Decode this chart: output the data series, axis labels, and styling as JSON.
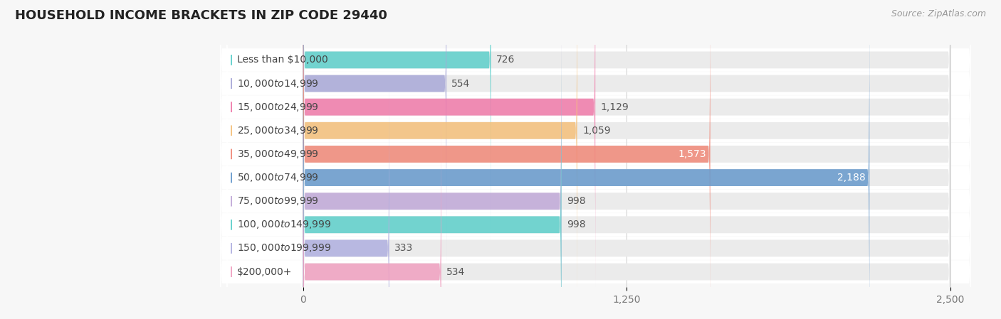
{
  "title": "HOUSEHOLD INCOME BRACKETS IN ZIP CODE 29440",
  "source": "Source: ZipAtlas.com",
  "categories": [
    "Less than $10,000",
    "$10,000 to $14,999",
    "$15,000 to $24,999",
    "$25,000 to $34,999",
    "$35,000 to $49,999",
    "$50,000 to $74,999",
    "$75,000 to $99,999",
    "$100,000 to $149,999",
    "$150,000 to $199,999",
    "$200,000+"
  ],
  "values": [
    726,
    554,
    1129,
    1059,
    1573,
    2188,
    998,
    998,
    333,
    534
  ],
  "bar_colors": [
    "#5dcfcb",
    "#a8a8d8",
    "#f07aaa",
    "#f5c07a",
    "#f08878",
    "#6699cc",
    "#c0a8d8",
    "#5dcfcb",
    "#b0b0e0",
    "#f0a0c0"
  ],
  "background_color": "#f7f7f7",
  "row_bg_color": "#ffffff",
  "bar_bg_color": "#ebebeb",
  "xlim": [
    0,
    2500
  ],
  "xticks": [
    0,
    1250,
    2500
  ],
  "title_fontsize": 13,
  "label_fontsize": 10,
  "value_fontsize": 10,
  "source_fontsize": 9,
  "inside_label_threshold": 1500
}
